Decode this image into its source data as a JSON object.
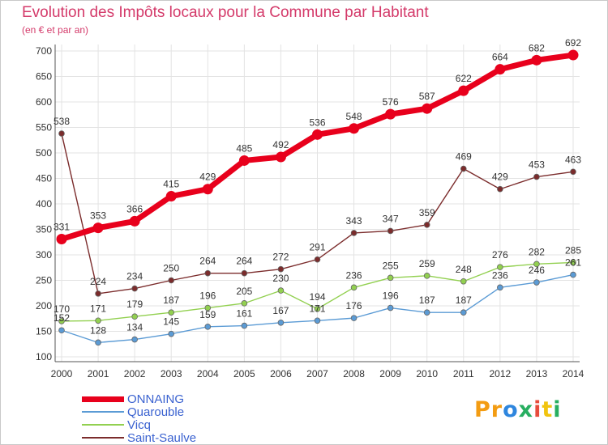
{
  "chart_data": {
    "type": "line",
    "title": "Evolution des Impôts locaux pour la Commune par Habitant",
    "subtitle": "(en € et par an)",
    "x": [
      "2000",
      "2001",
      "2002",
      "2003",
      "2004",
      "2005",
      "2006",
      "2007",
      "2008",
      "2009",
      "2010",
      "2011",
      "2012",
      "2013",
      "2014"
    ],
    "ylim": [
      100,
      700
    ],
    "yticks": [
      100,
      150,
      200,
      250,
      300,
      350,
      400,
      450,
      500,
      550,
      600,
      650,
      700
    ],
    "grid": true,
    "legend_position": "bottom-left",
    "series": [
      {
        "name": "ONNAING",
        "color": "#e8001c",
        "values": [
          331,
          353,
          366,
          415,
          429,
          485,
          492,
          536,
          548,
          576,
          587,
          622,
          664,
          682,
          692
        ]
      },
      {
        "name": "Quarouble",
        "color": "#5b9bd5",
        "values": [
          152,
          128,
          134,
          145,
          159,
          161,
          167,
          171,
          176,
          196,
          187,
          187,
          236,
          246,
          261
        ]
      },
      {
        "name": "Vicq",
        "color": "#92d050",
        "values": [
          170,
          171,
          179,
          187,
          196,
          205,
          230,
          194,
          236,
          255,
          259,
          248,
          276,
          282,
          285
        ]
      },
      {
        "name": "Saint-Saulve",
        "color": "#7b2c2c",
        "values": [
          538,
          224,
          234,
          250,
          264,
          264,
          272,
          291,
          343,
          347,
          359,
          469,
          429,
          453,
          463
        ]
      }
    ]
  },
  "logo": {
    "parts": [
      "Pr",
      "o",
      "x",
      "i",
      "t",
      "i"
    ]
  }
}
